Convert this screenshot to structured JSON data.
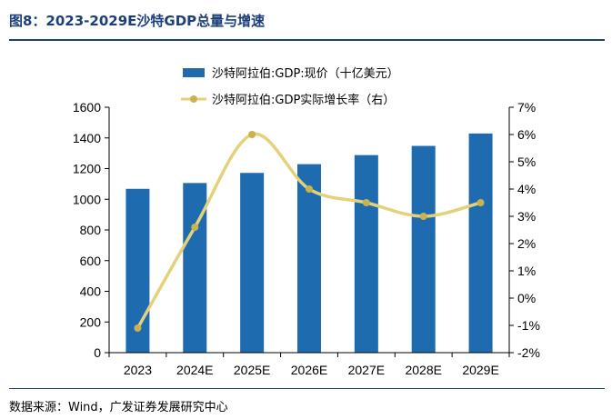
{
  "figure": {
    "title": "图8：2023-2029E沙特GDP总量与增速",
    "source": "数据来源：Wind，广发证券发展研究中心"
  },
  "colors": {
    "bar": "#1f6bb0",
    "line": "#e3d27a",
    "marker": "#c9b24f",
    "axis": "#000000",
    "title": "#1a3f7a"
  },
  "chart_data": {
    "type": "bar",
    "categories": [
      "2023",
      "2024E",
      "2025E",
      "2026E",
      "2027E",
      "2028E",
      "2029E"
    ],
    "series": [
      {
        "name": "沙特阿拉伯:GDP:现价（十亿美元）",
        "type": "bar",
        "axis": "left",
        "values": [
          1068,
          1106,
          1172,
          1229,
          1288,
          1348,
          1429
        ]
      },
      {
        "name": "沙特阿拉伯:GDP实际增长率（右）",
        "type": "line",
        "axis": "right",
        "values": [
          -1.1,
          2.6,
          6.0,
          4.0,
          3.5,
          3.0,
          3.5
        ]
      }
    ],
    "ylim_left": [
      0,
      1600
    ],
    "yticks_left": [
      "0",
      "200",
      "400",
      "600",
      "800",
      "1000",
      "1200",
      "1400",
      "1600"
    ],
    "ylim_right": [
      -2,
      7
    ],
    "yticks_right": [
      "-2%",
      "-1%",
      "0%",
      "1%",
      "2%",
      "3%",
      "4%",
      "5%",
      "6%",
      "7%"
    ],
    "grid": false,
    "legend": "top-center"
  }
}
